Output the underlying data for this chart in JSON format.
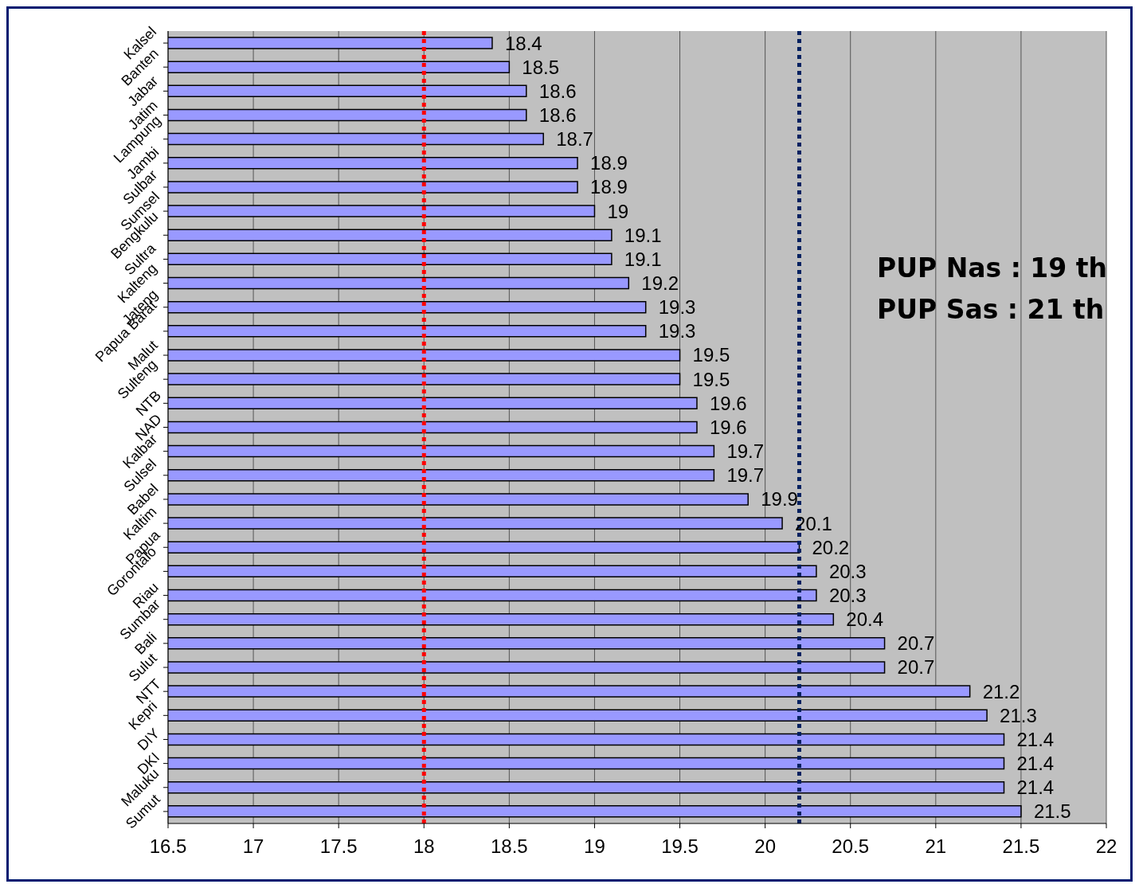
{
  "chart_data": {
    "type": "bar",
    "orientation": "horizontal",
    "categories": [
      "Kalsel",
      "Banten",
      "Jabar",
      "Jatim",
      "Lampung",
      "Jambi",
      "Sulbar",
      "Sumsel",
      "Bengkulu",
      "Sultra",
      "Kalteng",
      "Jateng",
      "Papua Barat",
      "Malut",
      "Sulteng",
      "NTB",
      "NAD",
      "Kalbar",
      "Sulsel",
      "Babel",
      "Kaltim",
      "Papua",
      "Gorontalo",
      "Riau",
      "Sumbar",
      "Bali",
      "Sulut",
      "NTT",
      "Kepri",
      "DIY",
      "DKI",
      "Maluku",
      "Sumut"
    ],
    "values": [
      18.4,
      18.5,
      18.6,
      18.6,
      18.7,
      18.9,
      18.9,
      19,
      19.1,
      19.1,
      19.2,
      19.3,
      19.3,
      19.5,
      19.5,
      19.6,
      19.6,
      19.7,
      19.7,
      19.9,
      20.1,
      20.2,
      20.3,
      20.3,
      20.4,
      20.7,
      20.7,
      21.2,
      21.3,
      21.4,
      21.4,
      21.4,
      21.5
    ],
    "color": "#9999ff",
    "xlim": [
      16.5,
      22
    ],
    "xticks": [
      16.5,
      17,
      17.5,
      18,
      18.5,
      19,
      19.5,
      20,
      20.5,
      21,
      21.5,
      22
    ],
    "grid": "x",
    "data_labels": true,
    "ref_lines": [
      {
        "axis": "x",
        "value": 18,
        "color": "#ff0000",
        "line_style": "dotted"
      },
      {
        "axis": "x",
        "value": 20.2,
        "color": "#002060",
        "line_style": "dotted"
      }
    ],
    "annotations": [
      "PUP Nas : 19 th",
      "PUP Sas : 21 th"
    ]
  }
}
